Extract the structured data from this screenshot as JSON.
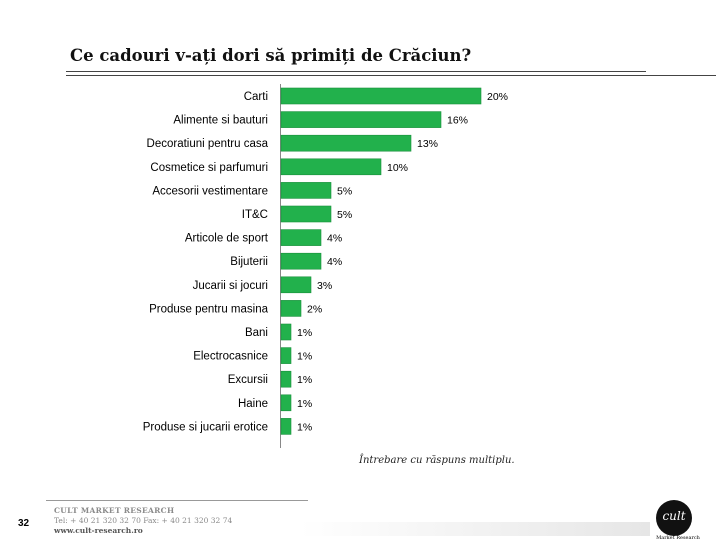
{
  "slide": {
    "title": "Ce cadouri v-ați dori să primiți de Crăciun?",
    "note": "Întrebare cu răspuns multiplu.",
    "page_number": "32"
  },
  "footer": {
    "company": "CULT MARKET RESEARCH",
    "contact": "Tel: + 40 21 320 32 70  Fax: + 40 21 320 32 74",
    "url": "www.cult-research.ro"
  },
  "logo": {
    "text": "cult",
    "caption": "Market Research"
  },
  "colors": {
    "bar": "#22b14c",
    "bar_edge": "#1a8f3c"
  },
  "chart_data": {
    "type": "bar",
    "orientation": "horizontal",
    "categories": [
      "Carti",
      "Alimente si bauturi",
      "Decoratiuni pentru casa",
      "Cosmetice si parfumuri",
      "Accesorii vestimentare",
      "IT&C",
      "Articole de sport",
      "Bijuterii",
      "Jucarii si jocuri",
      "Produse pentru masina",
      "Bani",
      "Electrocasnice",
      "Excursii",
      "Haine",
      "Produse si jucarii erotice"
    ],
    "values": [
      20,
      16,
      13,
      10,
      5,
      5,
      4,
      4,
      3,
      2,
      1,
      1,
      1,
      1,
      1
    ],
    "value_labels": [
      "20%",
      "16%",
      "13%",
      "10%",
      "5%",
      "5%",
      "4%",
      "4%",
      "3%",
      "2%",
      "1%",
      "1%",
      "1%",
      "1%",
      "1%"
    ],
    "unit": "%",
    "xlim": [
      0,
      20
    ]
  }
}
